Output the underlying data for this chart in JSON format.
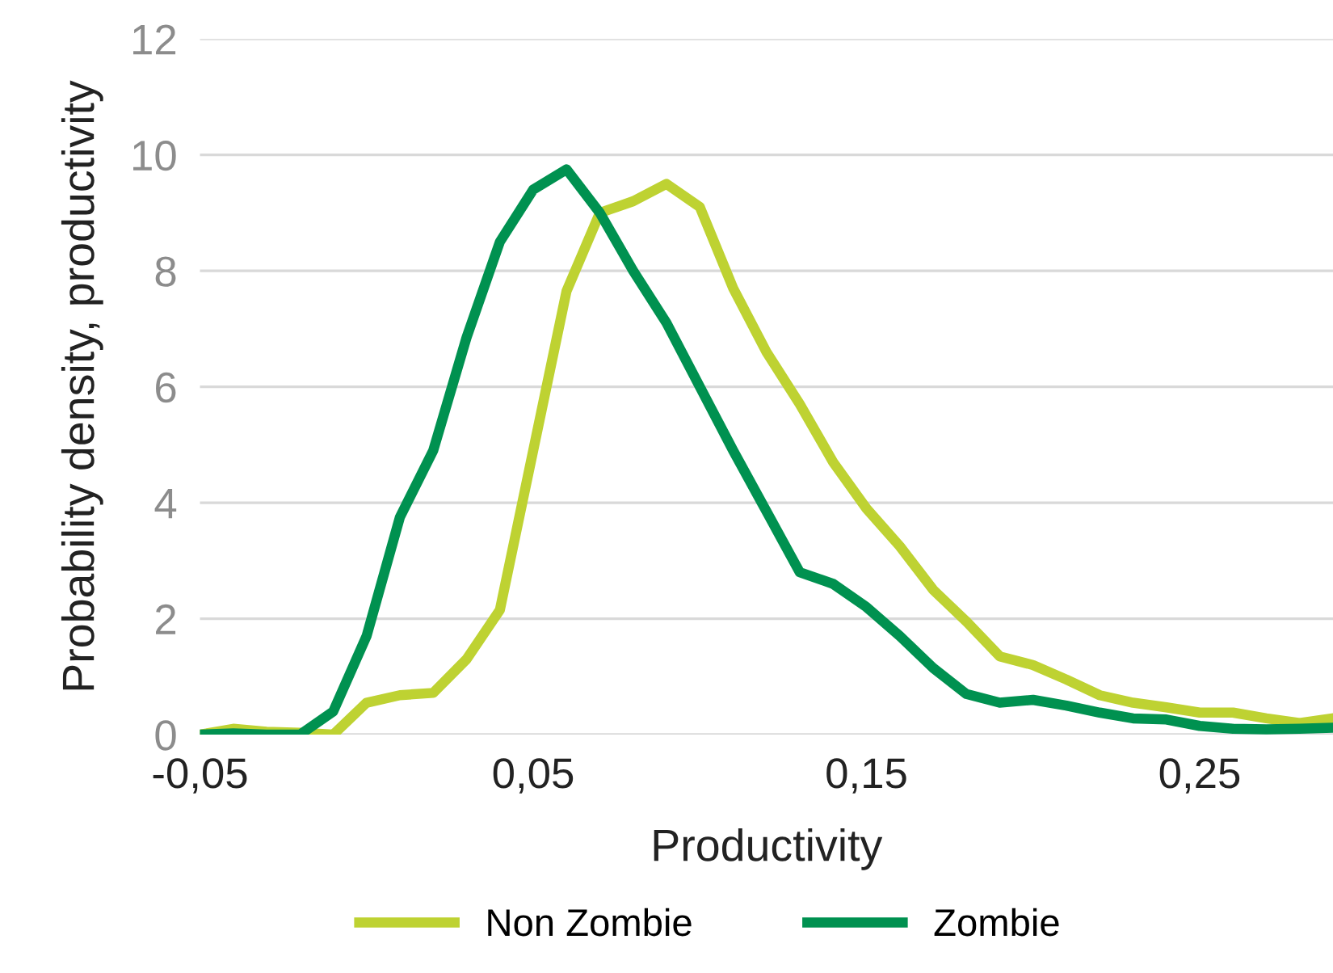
{
  "chart_data": {
    "type": "line",
    "xlabel": "Productivity",
    "ylabel": "Probability density, productivity",
    "x": [
      -0.05,
      -0.04,
      -0.03,
      -0.02,
      -0.01,
      0,
      0.01,
      0.02,
      0.03,
      0.04,
      0.05,
      0.06,
      0.07,
      0.08,
      0.09,
      0.1,
      0.11,
      0.12,
      0.13,
      0.14,
      0.15,
      0.16,
      0.17,
      0.18,
      0.19,
      0.2,
      0.21,
      0.22,
      0.23,
      0.24,
      0.25,
      0.26,
      0.27,
      0.28,
      0.29
    ],
    "series": [
      {
        "name": "Non Zombie",
        "color": "#bed232",
        "values": [
          0,
          0.1,
          0.05,
          0.03,
          0,
          0.55,
          0.68,
          0.72,
          1.3,
          2.15,
          4.9,
          7.65,
          9.0,
          9.2,
          9.5,
          9.1,
          7.7,
          6.6,
          5.7,
          4.7,
          3.9,
          3.25,
          2.5,
          1.95,
          1.35,
          1.2,
          0.95,
          0.68,
          0.55,
          0.47,
          0.38,
          0.38,
          0.28,
          0.2,
          0.28
        ]
      },
      {
        "name": "Zombie",
        "color": "#009150",
        "values": [
          0,
          0.02,
          0,
          0,
          0.4,
          1.7,
          3.75,
          4.9,
          6.85,
          8.5,
          9.4,
          9.75,
          9.0,
          8.0,
          7.1,
          6.0,
          4.9,
          3.85,
          2.8,
          2.6,
          2.2,
          1.7,
          1.15,
          0.7,
          0.55,
          0.6,
          0.5,
          0.38,
          0.28,
          0.26,
          0.15,
          0.1,
          0.09,
          0.1,
          0.12
        ]
      }
    ],
    "xlim": [
      -0.05,
      0.29
    ],
    "ylim": [
      0,
      12
    ],
    "xticks": [
      {
        "value": -0.05,
        "label": "-0,05"
      },
      {
        "value": 0.05,
        "label": "0,05"
      },
      {
        "value": 0.15,
        "label": "0,15"
      },
      {
        "value": 0.25,
        "label": "0,25"
      }
    ],
    "yticks": [
      0,
      2,
      4,
      6,
      8,
      10,
      12
    ],
    "grid": "y",
    "legend": "bottom",
    "line_style": "solid",
    "marker": "none"
  }
}
